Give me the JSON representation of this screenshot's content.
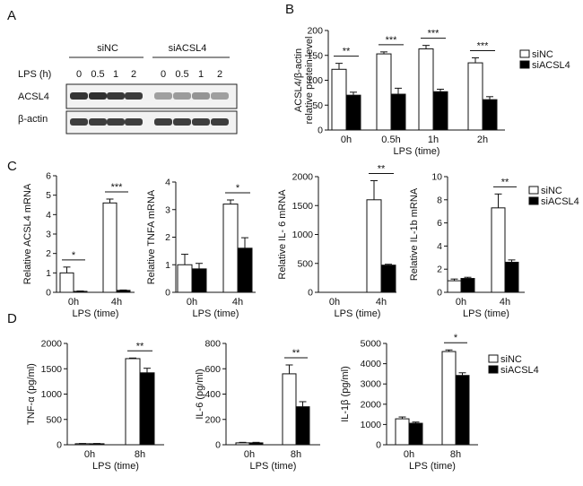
{
  "panels": {
    "a": {
      "letter": "A",
      "groups": [
        "siNC",
        "siACSL4"
      ],
      "lps_label": "LPS (h)",
      "lanes": [
        "0",
        "0.5",
        "1",
        "2",
        "0",
        "0.5",
        "1",
        "2"
      ],
      "rows": [
        {
          "label": "ACSL4",
          "intensity": [
            0.9,
            0.92,
            0.88,
            0.86,
            0.4,
            0.42,
            0.45,
            0.4
          ]
        },
        {
          "label": "β-actin",
          "intensity": [
            0.85,
            0.85,
            0.85,
            0.85,
            0.85,
            0.85,
            0.85,
            0.85
          ]
        }
      ]
    },
    "b": {
      "letter": "B"
    },
    "c": {
      "letter": "C"
    },
    "d": {
      "letter": "D"
    }
  },
  "legend": {
    "series": [
      "siNC",
      "siACSL4"
    ]
  },
  "colors": {
    "siNC": "#ffffff",
    "siACSL4": "#000000",
    "axis": "#111111"
  },
  "chart_data": [
    {
      "id": "b",
      "type": "bar",
      "categories": [
        "0h",
        "0.5h",
        "1h",
        "2h"
      ],
      "series": [
        {
          "name": "siNC",
          "values": [
            122,
            153,
            163,
            135
          ],
          "errors": [
            12,
            4,
            7,
            10
          ]
        },
        {
          "name": "siACSL4",
          "values": [
            70,
            72,
            77,
            61
          ],
          "errors": [
            6,
            12,
            5,
            6
          ]
        }
      ],
      "ylabel": "ACSL4/β-actin relative protein level",
      "xlabel": "LPS (time)",
      "ylim": [
        0,
        200
      ],
      "yticks": [
        "0",
        "50",
        "100",
        "150",
        "200"
      ],
      "significance": [
        "**",
        "***",
        "***",
        "***"
      ],
      "legend": "right"
    },
    {
      "id": "c1",
      "type": "bar",
      "categories": [
        "0h",
        "4h"
      ],
      "series": [
        {
          "name": "siNC",
          "values": [
            1.0,
            4.6
          ],
          "errors": [
            0.3,
            0.2
          ]
        },
        {
          "name": "siACSL4",
          "values": [
            0.05,
            0.1
          ],
          "errors": [
            0.02,
            0.02
          ]
        }
      ],
      "ylabel": "Relative ACSL4 mRNA",
      "xlabel": "LPS (time)",
      "ylim": [
        0,
        6
      ],
      "yticks": [
        "0",
        "1",
        "2",
        "3",
        "4",
        "5",
        "6"
      ],
      "significance": [
        "*",
        "***"
      ]
    },
    {
      "id": "c2",
      "type": "bar",
      "categories": [
        "0h",
        "4h"
      ],
      "series": [
        {
          "name": "siNC",
          "values": [
            1.0,
            3.2
          ],
          "errors": [
            0.38,
            0.15
          ]
        },
        {
          "name": "siACSL4",
          "values": [
            0.85,
            1.6
          ],
          "errors": [
            0.2,
            0.38
          ]
        }
      ],
      "ylabel": "Relative TNFA mRNA",
      "xlabel": "LPS (time)",
      "ylim": [
        0,
        4
      ],
      "yticks": [
        "0",
        "1",
        "2",
        "3",
        "4"
      ],
      "significance": [
        "",
        "*"
      ]
    },
    {
      "id": "c3",
      "type": "bar",
      "categories": [
        "0h",
        "4h"
      ],
      "series": [
        {
          "name": "siNC",
          "values": [
            0,
            1600
          ],
          "errors": [
            0,
            330
          ]
        },
        {
          "name": "siACSL4",
          "values": [
            0,
            470
          ],
          "errors": [
            0,
            15
          ]
        }
      ],
      "ylabel": "Relative IL- 6 mRNA",
      "xlabel": "LPS (time)",
      "ylim": [
        0,
        2000
      ],
      "yticks": [
        "0",
        "500",
        "1000",
        "1500",
        "2000"
      ],
      "significance": [
        "",
        "**"
      ]
    },
    {
      "id": "c4",
      "type": "bar",
      "categories": [
        "0h",
        "4h"
      ],
      "series": [
        {
          "name": "siNC",
          "values": [
            1.0,
            7.3
          ],
          "errors": [
            0.15,
            1.2
          ]
        },
        {
          "name": "siACSL4",
          "values": [
            1.2,
            2.6
          ],
          "errors": [
            0.1,
            0.2
          ]
        }
      ],
      "ylabel": "Relative IL-1b mRNA",
      "xlabel": "LPS (time)",
      "ylim": [
        0,
        10
      ],
      "yticks": [
        "0",
        "2",
        "4",
        "6",
        "8",
        "10"
      ],
      "significance": [
        "",
        "**"
      ],
      "legend": "right"
    },
    {
      "id": "d1",
      "type": "bar",
      "categories": [
        "0h",
        "8h"
      ],
      "series": [
        {
          "name": "siNC",
          "values": [
            20,
            1700
          ],
          "errors": [
            5,
            12
          ]
        },
        {
          "name": "siACSL4",
          "values": [
            20,
            1420
          ],
          "errors": [
            5,
            90
          ]
        }
      ],
      "ylabel": "TNF-α (pg/ml)",
      "xlabel": "LPS (time)",
      "ylim": [
        0,
        2000
      ],
      "yticks": [
        "0",
        "500",
        "1000",
        "1500",
        "2000"
      ],
      "significance": [
        "",
        "**"
      ]
    },
    {
      "id": "d2",
      "type": "bar",
      "categories": [
        "0h",
        "8h"
      ],
      "series": [
        {
          "name": "siNC",
          "values": [
            15,
            560
          ],
          "errors": [
            4,
            70
          ]
        },
        {
          "name": "siACSL4",
          "values": [
            15,
            300
          ],
          "errors": [
            4,
            40
          ]
        }
      ],
      "ylabel": "IL-6 (pg/ml)",
      "xlabel": "LPS (time)",
      "ylim": [
        0,
        800
      ],
      "yticks": [
        "0",
        "200",
        "400",
        "600",
        "800"
      ],
      "significance": [
        "",
        "**"
      ]
    },
    {
      "id": "d3",
      "type": "bar",
      "categories": [
        "0h",
        "8h"
      ],
      "series": [
        {
          "name": "siNC",
          "values": [
            1280,
            4600
          ],
          "errors": [
            90,
            80
          ]
        },
        {
          "name": "siACSL4",
          "values": [
            1060,
            3420
          ],
          "errors": [
            60,
            130
          ]
        }
      ],
      "ylabel": "IL-1β (pg/ml)",
      "xlabel": "LPS (time)",
      "ylim": [
        0,
        5000
      ],
      "yticks": [
        "0",
        "1000",
        "2000",
        "3000",
        "4000",
        "5000"
      ],
      "significance": [
        "",
        "*"
      ],
      "legend": "right"
    }
  ]
}
